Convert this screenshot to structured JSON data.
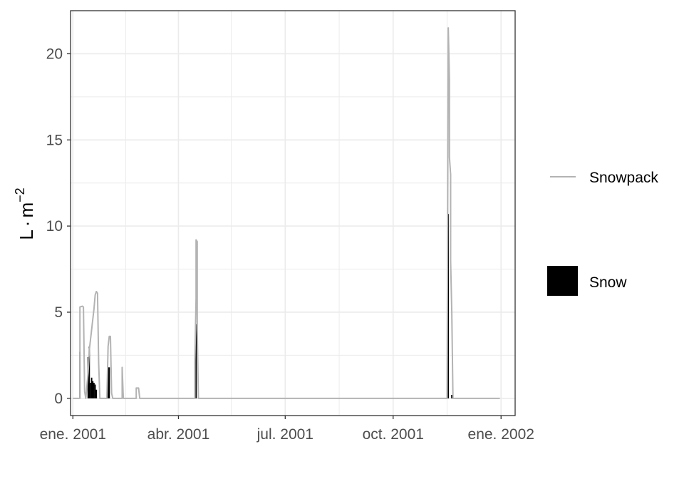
{
  "chart_data": {
    "type": "line",
    "x_type": "date",
    "ylabel_base": "L",
    "ylabel_dot": "·",
    "ylabel_unit": "m",
    "ylabel_exp": "−2",
    "xlim": [
      "2000-12-30",
      "2002-01-13"
    ],
    "ylim": [
      -1,
      22.5
    ],
    "x_ticks": [
      {
        "date": "2001-01-01",
        "label": "ene. 2001"
      },
      {
        "date": "2001-04-01",
        "label": "abr. 2001"
      },
      {
        "date": "2001-07-01",
        "label": "jul. 2001"
      },
      {
        "date": "2001-10-01",
        "label": "oct. 2001"
      },
      {
        "date": "2002-01-01",
        "label": "ene. 2002"
      }
    ],
    "x_minor": [
      "2001-02-15",
      "2001-05-16",
      "2001-08-16",
      "2001-11-16"
    ],
    "y_ticks": [
      0,
      5,
      10,
      15,
      20
    ],
    "y_minor": [
      2.5,
      7.5,
      12.5,
      17.5
    ],
    "grid": true,
    "legend_position": "right",
    "series": [
      {
        "name": "Snowpack",
        "kind": "line",
        "color": "#b3b3b3",
        "points": [
          [
            "2001-01-01",
            0
          ],
          [
            "2001-01-07",
            0
          ],
          [
            "2001-01-07",
            5.3
          ],
          [
            "2001-01-09",
            5.35
          ],
          [
            "2001-01-10",
            5.3
          ],
          [
            "2001-01-11",
            0.4
          ],
          [
            "2001-01-12",
            0
          ],
          [
            "2001-01-14",
            1.5
          ],
          [
            "2001-01-15",
            2.8
          ],
          [
            "2001-01-16",
            3.4
          ],
          [
            "2001-01-17",
            4.0
          ],
          [
            "2001-01-18",
            4.6
          ],
          [
            "2001-01-19",
            5.2
          ],
          [
            "2001-01-20",
            6.0
          ],
          [
            "2001-01-21",
            6.2
          ],
          [
            "2001-01-22",
            6.1
          ],
          [
            "2001-01-23",
            2.0
          ],
          [
            "2001-01-24",
            0
          ],
          [
            "2001-01-30",
            0
          ],
          [
            "2001-01-31",
            3.0
          ],
          [
            "2001-02-01",
            3.6
          ],
          [
            "2001-02-02",
            3.6
          ],
          [
            "2001-02-03",
            0.3
          ],
          [
            "2001-02-04",
            0
          ],
          [
            "2001-02-12",
            0
          ],
          [
            "2001-02-12",
            1.8
          ],
          [
            "2001-02-13",
            0
          ],
          [
            "2001-02-24",
            0
          ],
          [
            "2001-02-24",
            0.6
          ],
          [
            "2001-02-26",
            0.6
          ],
          [
            "2001-02-27",
            0
          ],
          [
            "2001-04-15",
            0
          ],
          [
            "2001-04-15",
            2.2
          ],
          [
            "2001-04-16",
            5.8
          ],
          [
            "2001-04-16",
            9.2
          ],
          [
            "2001-04-17",
            9.1
          ],
          [
            "2001-04-17",
            4.0
          ],
          [
            "2001-04-18",
            0
          ],
          [
            "2001-11-16",
            0
          ],
          [
            "2001-11-17",
            21.5
          ],
          [
            "2001-11-18",
            18.5
          ],
          [
            "2001-11-18",
            14.0
          ],
          [
            "2001-11-19",
            13.0
          ],
          [
            "2001-11-19",
            8.0
          ],
          [
            "2001-11-20",
            5.0
          ],
          [
            "2001-11-21",
            0
          ],
          [
            "2001-12-31",
            0
          ]
        ]
      },
      {
        "name": "Snow",
        "kind": "bar",
        "color": "#000000",
        "points": [
          [
            "2001-01-07",
            2.7
          ],
          [
            "2001-01-14",
            2.4
          ],
          [
            "2001-01-15",
            3.0
          ],
          [
            "2001-01-16",
            0.9
          ],
          [
            "2001-01-17",
            1.2
          ],
          [
            "2001-01-18",
            1.0
          ],
          [
            "2001-01-19",
            0.9
          ],
          [
            "2001-01-20",
            0.8
          ],
          [
            "2001-01-21",
            0.5
          ],
          [
            "2001-01-31",
            1.8
          ],
          [
            "2001-02-01",
            1.8
          ],
          [
            "2001-04-15",
            2.1
          ],
          [
            "2001-04-16",
            4.3
          ],
          [
            "2001-11-17",
            10.7
          ],
          [
            "2001-11-20",
            0.2
          ]
        ]
      }
    ]
  }
}
